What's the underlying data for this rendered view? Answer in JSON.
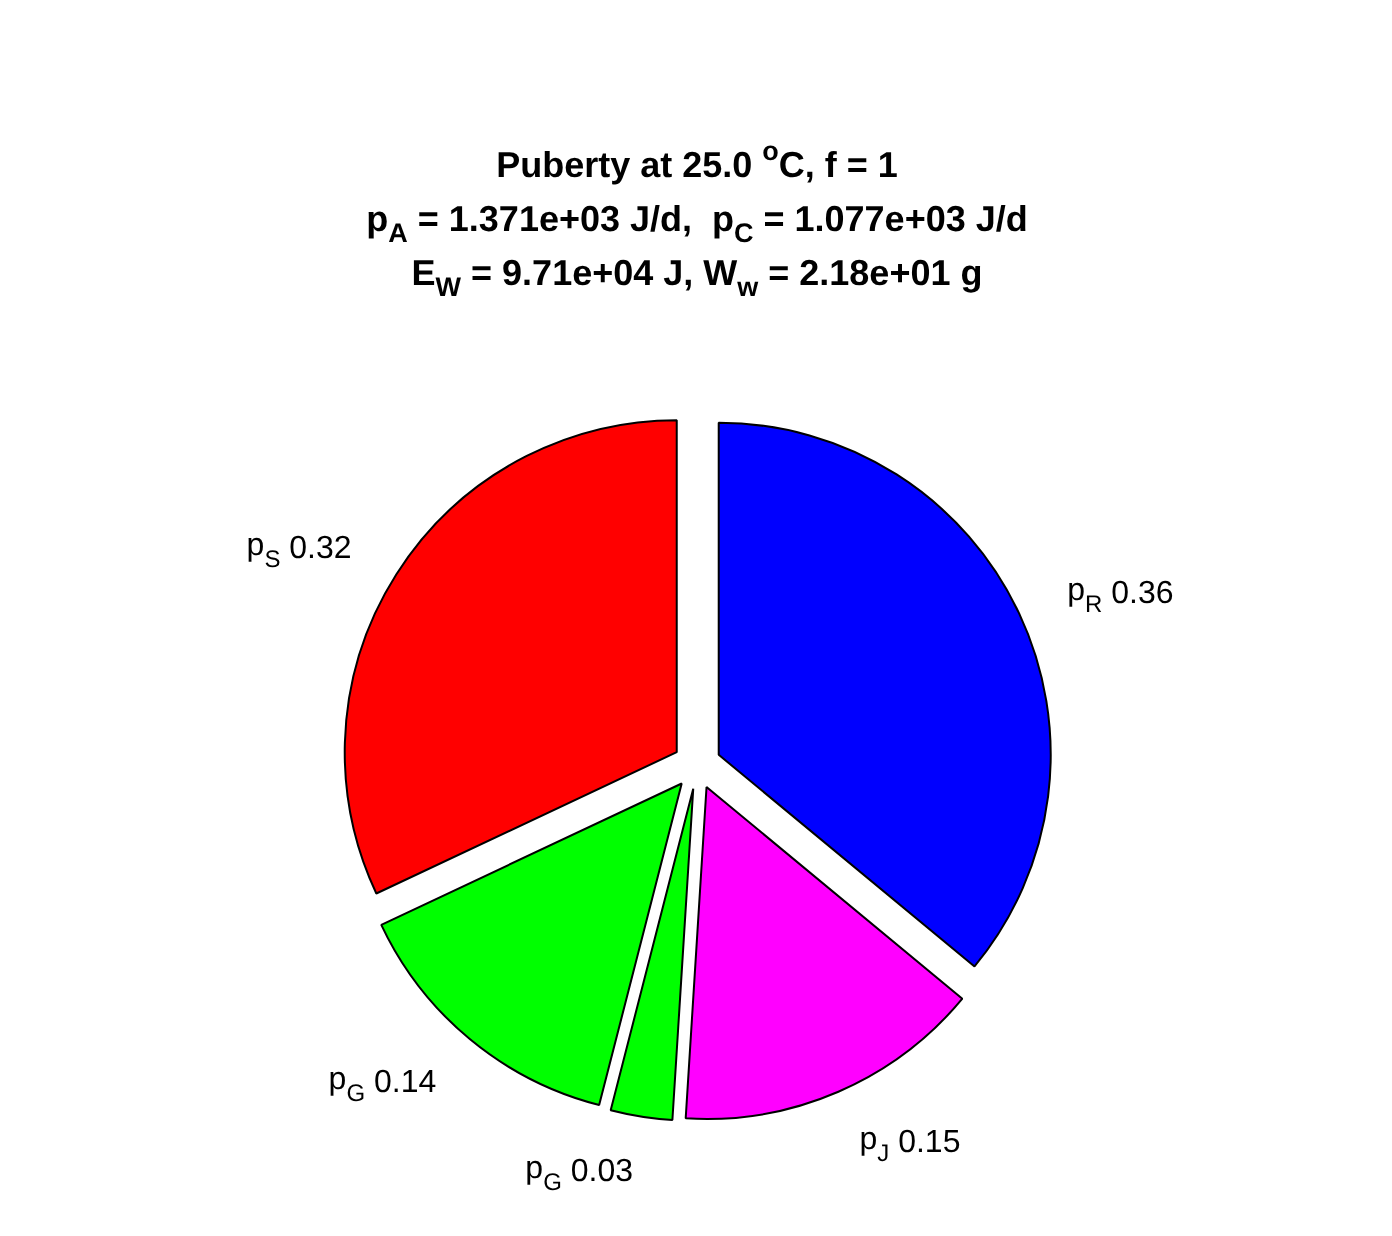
{
  "chart_data": {
    "type": "pie",
    "title": "Puberty at 25.0 $^{o}$C, f = 1\np$_{A}$ = 1.371e+03 J/d,  p$_{C}$ = 1.077e+03 J/d\nE$_{W}$ = 9.71e+04 J, W$_{w}$ = 2.18e+01 g",
    "categories": [
      "p$_{R}$",
      "p$_{J}$",
      "p$_{G}$",
      "p$_{G}$",
      "p$_{S}$"
    ],
    "values": [
      0.36,
      0.15,
      0.03,
      0.14,
      0.32
    ],
    "colors": [
      "#0000ff",
      "#ff00ff",
      "#00ff00",
      "#00ff00",
      "#ff0000"
    ],
    "data_labels": true
  }
}
